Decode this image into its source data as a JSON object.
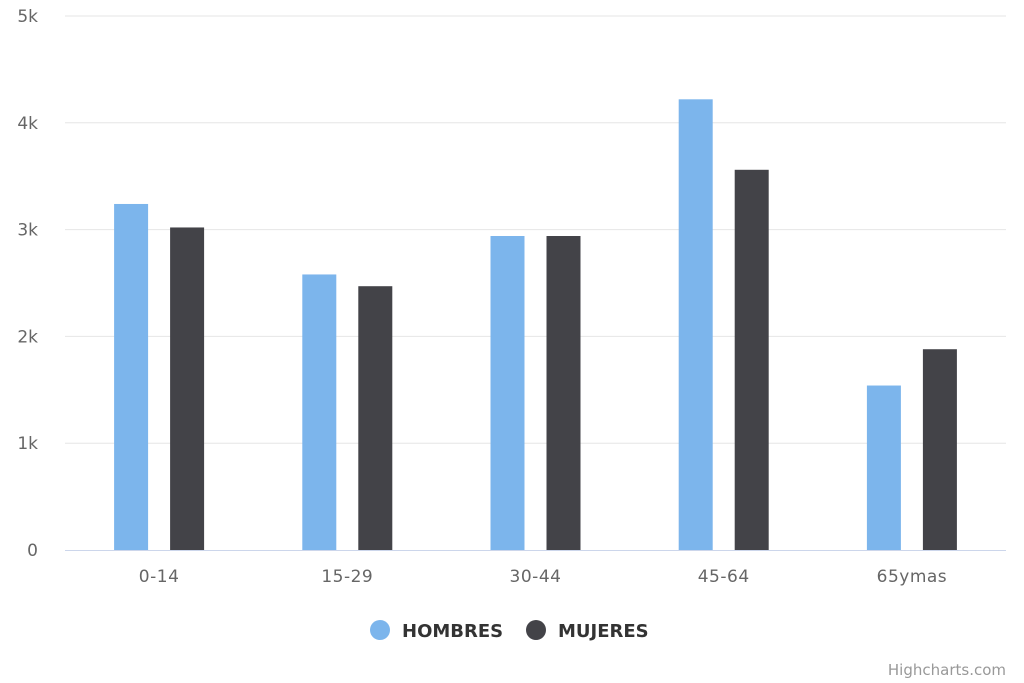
{
  "chart_data": {
    "type": "bar",
    "categories": [
      "0-14",
      "15-29",
      "30-44",
      "45-64",
      "65ymas"
    ],
    "series": [
      {
        "name": "HOMBRES",
        "color": "#7cb5ec",
        "values": [
          3240,
          2580,
          2940,
          4220,
          1540
        ]
      },
      {
        "name": "MUJERES",
        "color": "#434348",
        "values": [
          3020,
          2470,
          2940,
          3560,
          1880
        ]
      }
    ],
    "ylim": [
      0,
      5000
    ],
    "y_ticks": [
      {
        "value": 0,
        "label": "0"
      },
      {
        "value": 1000,
        "label": "1k"
      },
      {
        "value": 2000,
        "label": "2k"
      },
      {
        "value": 3000,
        "label": "3k"
      },
      {
        "value": 4000,
        "label": "4k"
      },
      {
        "value": 5000,
        "label": "5k"
      }
    ],
    "grid": true,
    "legend_position": "bottom-center",
    "credits": "Highcharts.com"
  }
}
